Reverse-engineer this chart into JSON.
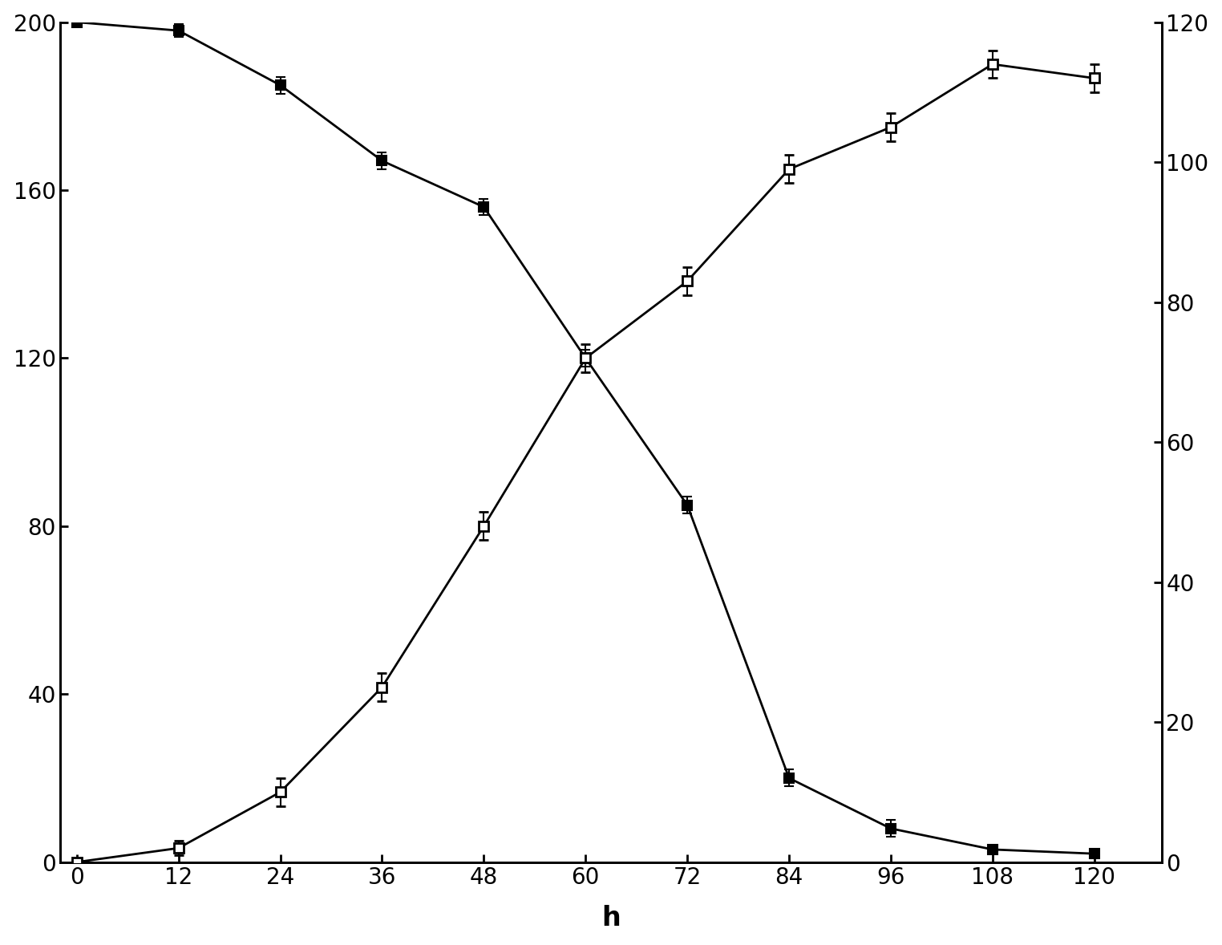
{
  "x": [
    0,
    12,
    24,
    36,
    48,
    60,
    72,
    84,
    96,
    108,
    120
  ],
  "filled_y": [
    200,
    198,
    185,
    167,
    156,
    120,
    85,
    20,
    8,
    3,
    2
  ],
  "filled_yerr": [
    0,
    1.5,
    2,
    2,
    2,
    2,
    2,
    2,
    2,
    1,
    1
  ],
  "open_y": [
    0,
    2,
    10,
    25,
    48,
    72,
    83,
    99,
    105,
    114,
    112
  ],
  "open_yerr": [
    0,
    1,
    2,
    2,
    2,
    2,
    2,
    2,
    2,
    2,
    2
  ],
  "left_ylim": [
    0,
    200
  ],
  "left_yticks": [
    0,
    40,
    80,
    120,
    160,
    200
  ],
  "right_ylim": [
    0,
    120
  ],
  "right_yticks": [
    0,
    20,
    40,
    60,
    80,
    100,
    120
  ],
  "xlim": [
    -2,
    128
  ],
  "xticks": [
    0,
    12,
    24,
    36,
    48,
    60,
    72,
    84,
    96,
    108,
    120
  ],
  "xlabel": "h",
  "xlabel_fontsize": 24,
  "tick_fontsize": 20,
  "line_color": "#000000",
  "marker_size": 9,
  "linewidth": 2,
  "capsize": 4,
  "elinewidth": 1.5,
  "background_color": "#ffffff"
}
